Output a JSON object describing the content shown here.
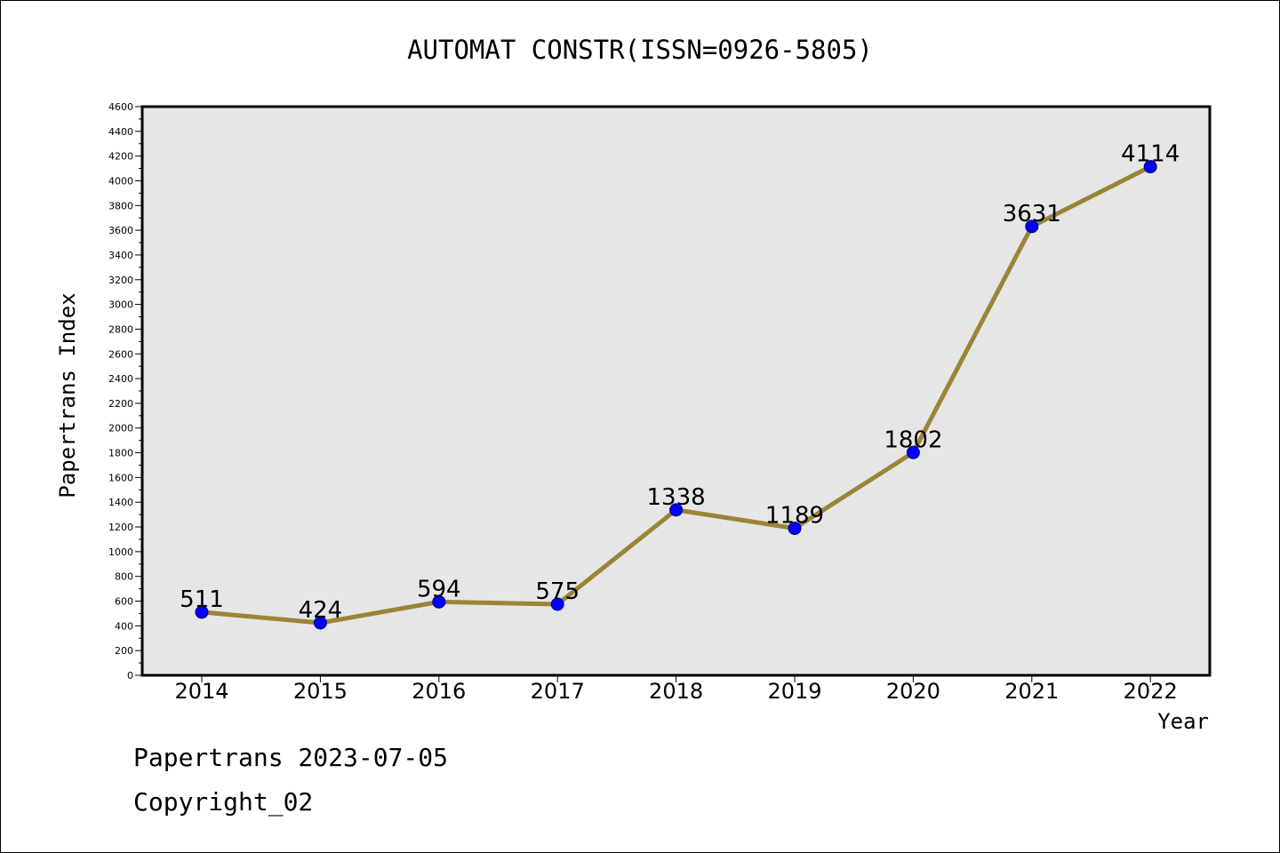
{
  "chart_data": {
    "type": "line",
    "title": "AUTOMAT CONSTR(ISSN=0926-5805)",
    "xlabel": "Year",
    "ylabel": "Papertrans Index",
    "categories": [
      "2014",
      "2015",
      "2016",
      "2017",
      "2018",
      "2019",
      "2020",
      "2021",
      "2022"
    ],
    "series": [
      {
        "values": [
          511,
          424,
          594,
          575,
          1338,
          1189,
          1802,
          3631,
          4114
        ]
      }
    ],
    "data_labels": [
      "511",
      "424",
      "594",
      "575",
      "1338",
      "1189",
      "1802",
      "3631",
      "4114"
    ],
    "ylim": [
      0,
      4600
    ],
    "yticks": [
      "0",
      "200",
      "400",
      "600",
      "800",
      "1000",
      "1200",
      "1400",
      "1600",
      "1800",
      "2000",
      "2200",
      "2400",
      "2600",
      "2800",
      "3000",
      "3200",
      "3400",
      "3600",
      "3800",
      "4000",
      "4200",
      "4400",
      "4600"
    ],
    "grid": false,
    "colors": {
      "plot_background": "#e6e6e6",
      "line": "#9a8437",
      "marker": "#0000ff",
      "marker_edge": "#000080"
    }
  },
  "footer": {
    "date_line": "Papertrans 2023-07-05",
    "copyright": "Copyright_02"
  }
}
